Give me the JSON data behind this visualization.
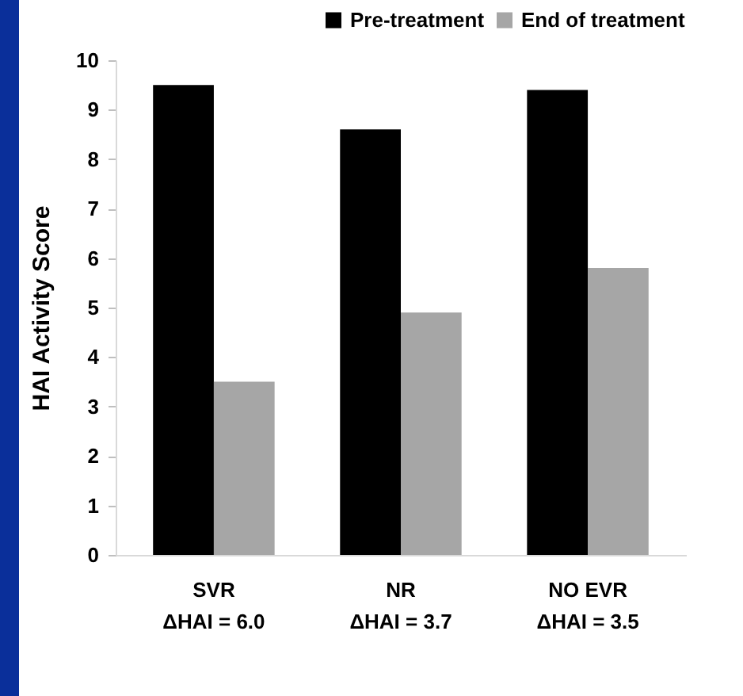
{
  "chart_data": {
    "type": "bar",
    "ylabel": "HAI Activity Score",
    "categories": [
      "SVR\nΔHAI = 6.0",
      "NR\nΔHAI = 3.7",
      "NO EVR\nΔHAI = 3.5"
    ],
    "series": [
      {
        "name": "Pre-treatment",
        "color": "#000000",
        "values": [
          9.5,
          8.6,
          9.4
        ]
      },
      {
        "name": "End of treatment",
        "color": "#a6a6a6",
        "values": [
          3.5,
          4.9,
          5.8
        ]
      }
    ],
    "ylim": [
      0,
      10
    ],
    "yticks": [
      0,
      1,
      2,
      3,
      4,
      5,
      6,
      7,
      8,
      9,
      10
    ],
    "grid": false,
    "legend": "top right"
  }
}
